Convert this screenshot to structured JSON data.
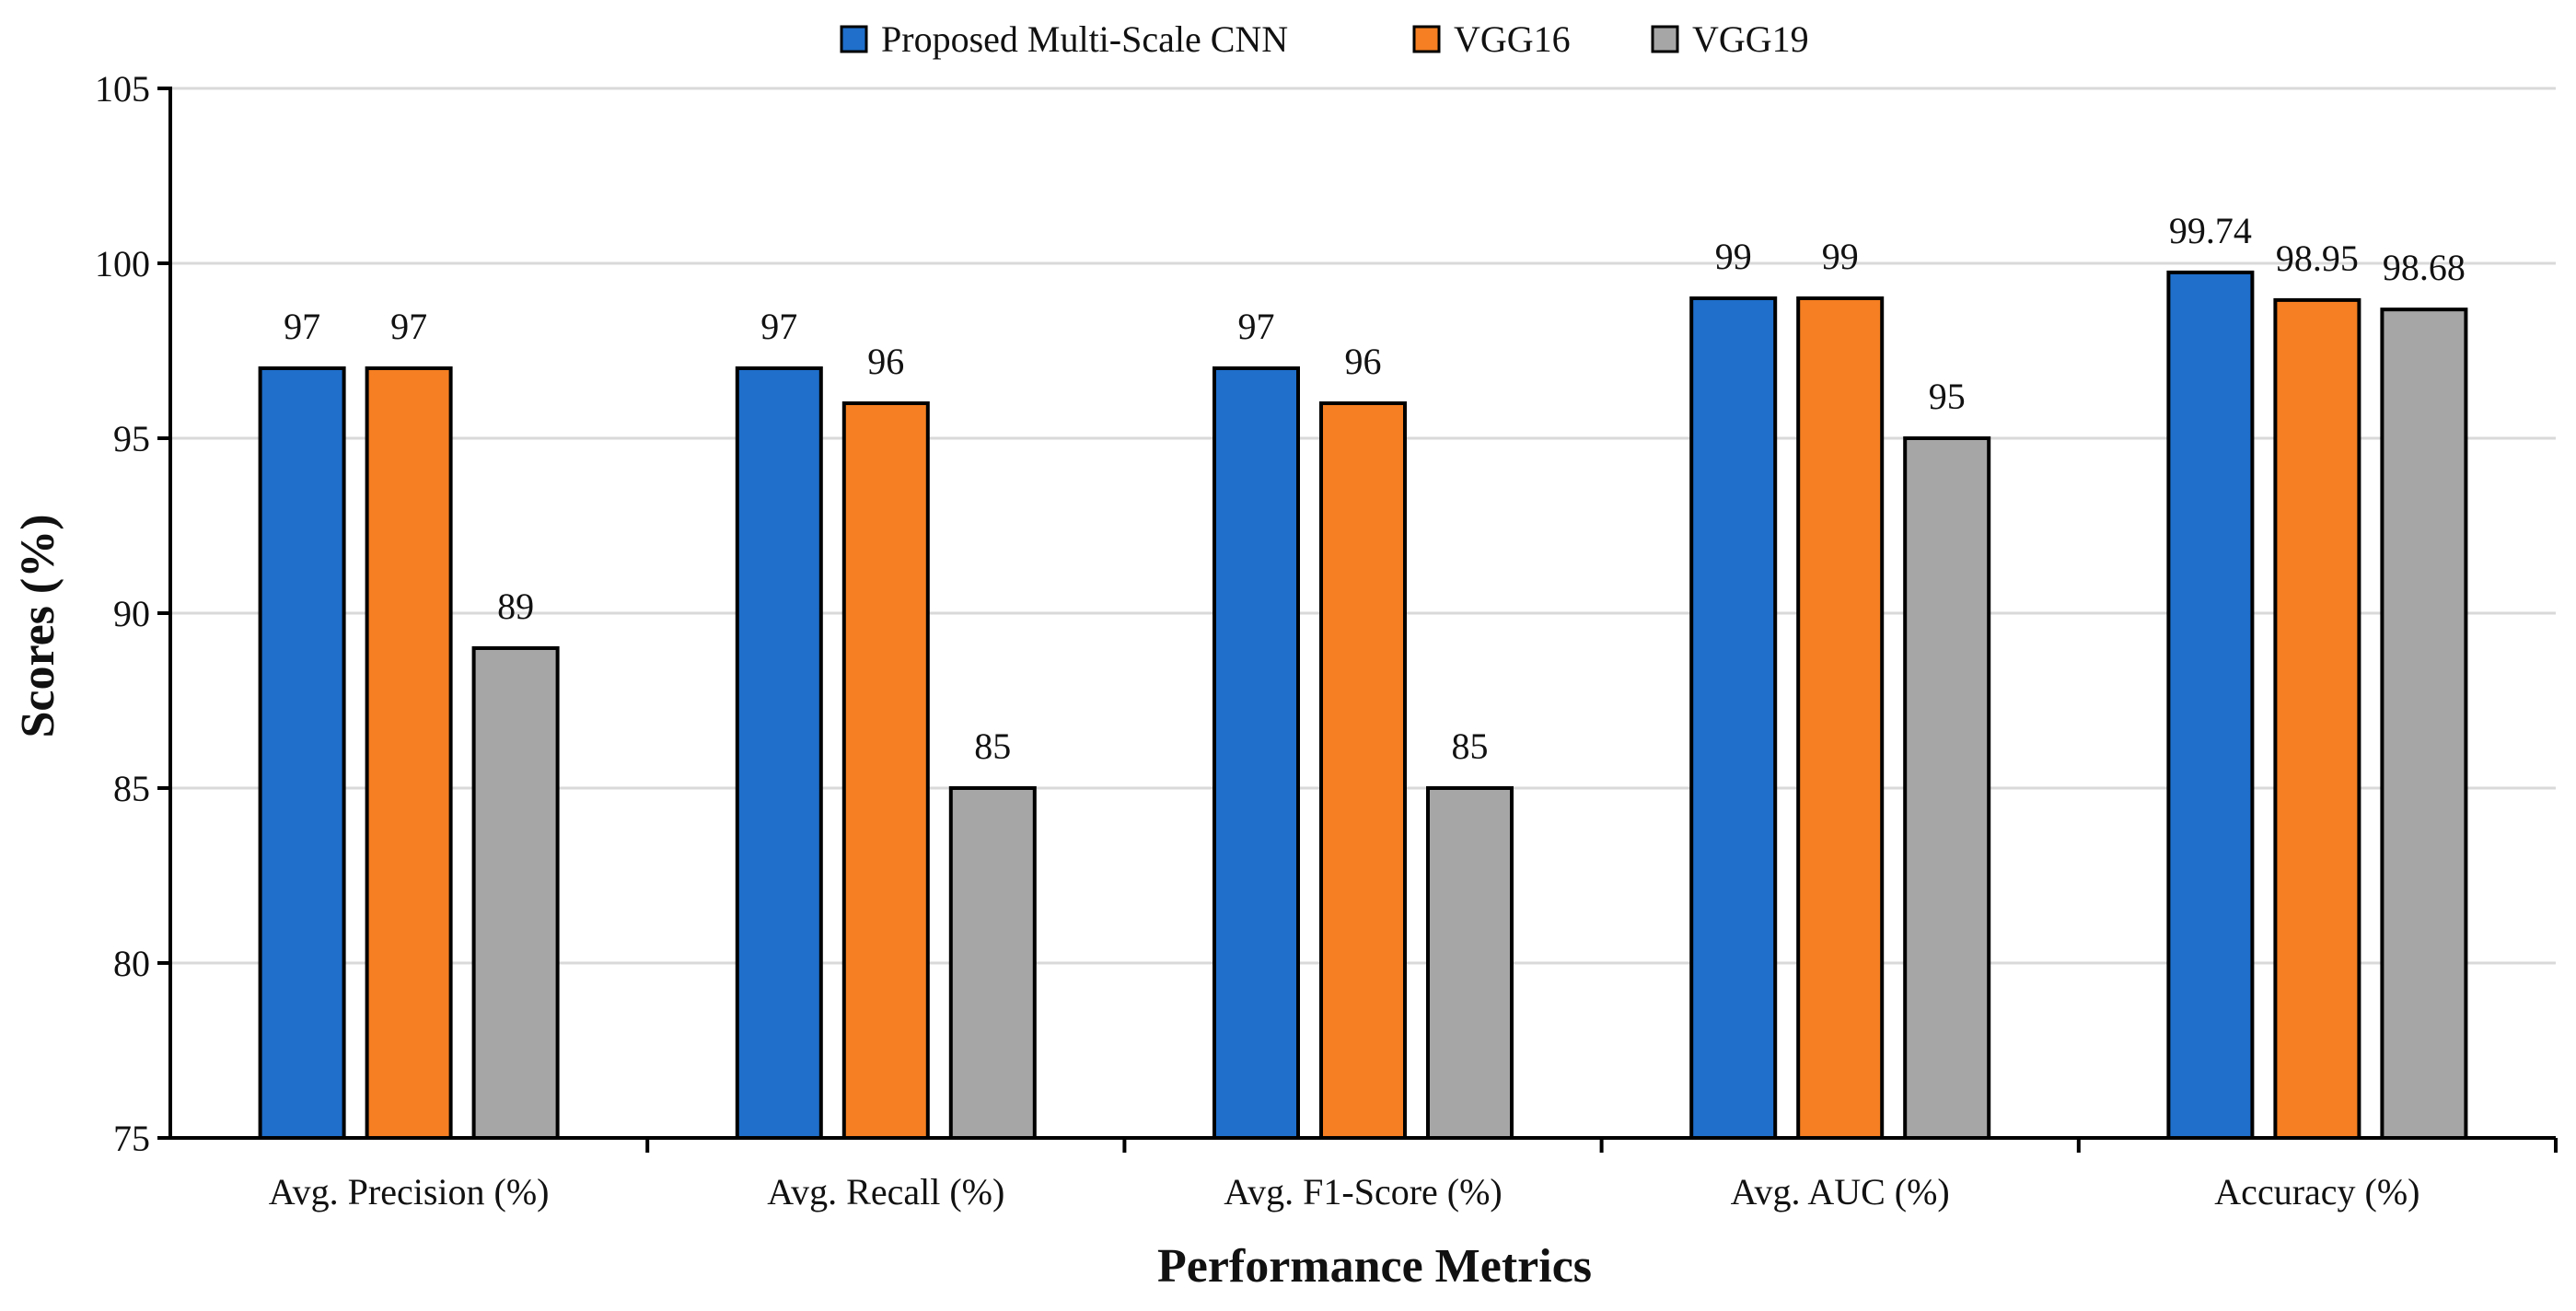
{
  "chart_data": {
    "type": "bar",
    "title": "",
    "xlabel": "Performance Metrics",
    "ylabel": "Scores (%)",
    "ylim": [
      75,
      105
    ],
    "yticks": [
      75,
      80,
      85,
      90,
      95,
      100,
      105
    ],
    "grid": true,
    "legend_position": "top",
    "categories": [
      "Avg. Precision (%)",
      "Avg. Recall (%)",
      "Avg. F1-Score (%)",
      "Avg. AUC (%)",
      "Accuracy (%)"
    ],
    "series": [
      {
        "name": "Proposed Multi-Scale CNN",
        "color": "#1f6fcb",
        "values": [
          97,
          97,
          97,
          99,
          99.74
        ],
        "labels": [
          "97",
          "97",
          "97",
          "99",
          "99.74"
        ]
      },
      {
        "name": "VGG16",
        "color": "#f57f22",
        "values": [
          97,
          96,
          96,
          99,
          98.95
        ],
        "labels": [
          "97",
          "96",
          "96",
          "99",
          "98.95"
        ]
      },
      {
        "name": "VGG19",
        "color": "#a6a6a6",
        "values": [
          89,
          85,
          85,
          95,
          98.68
        ],
        "labels": [
          "89",
          "85",
          "85",
          "95",
          "98.68"
        ]
      }
    ]
  }
}
